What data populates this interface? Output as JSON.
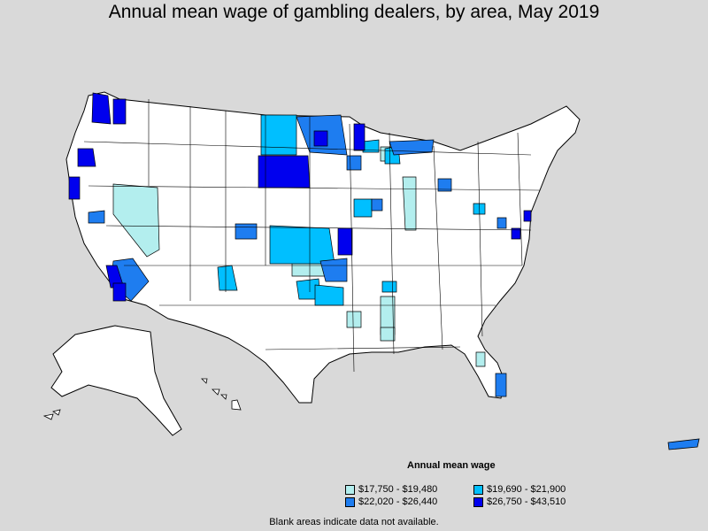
{
  "title": "Annual mean wage of gambling dealers, by area, May 2019",
  "legend": {
    "title": "Annual mean wage",
    "items": [
      {
        "label": "$17,750 - $19,480",
        "color": "#b3eeee"
      },
      {
        "label": "$19,690 - $21,900",
        "color": "#00bfff"
      },
      {
        "label": "$22,020 - $26,440",
        "color": "#1e7df0"
      },
      {
        "label": "$26,750 - $43,510",
        "color": "#0000ee"
      }
    ]
  },
  "footnote": "Blank areas indicate data not available.",
  "colors": {
    "background": "#d9d9d9",
    "land": "#ffffff",
    "border": "#000000"
  }
}
